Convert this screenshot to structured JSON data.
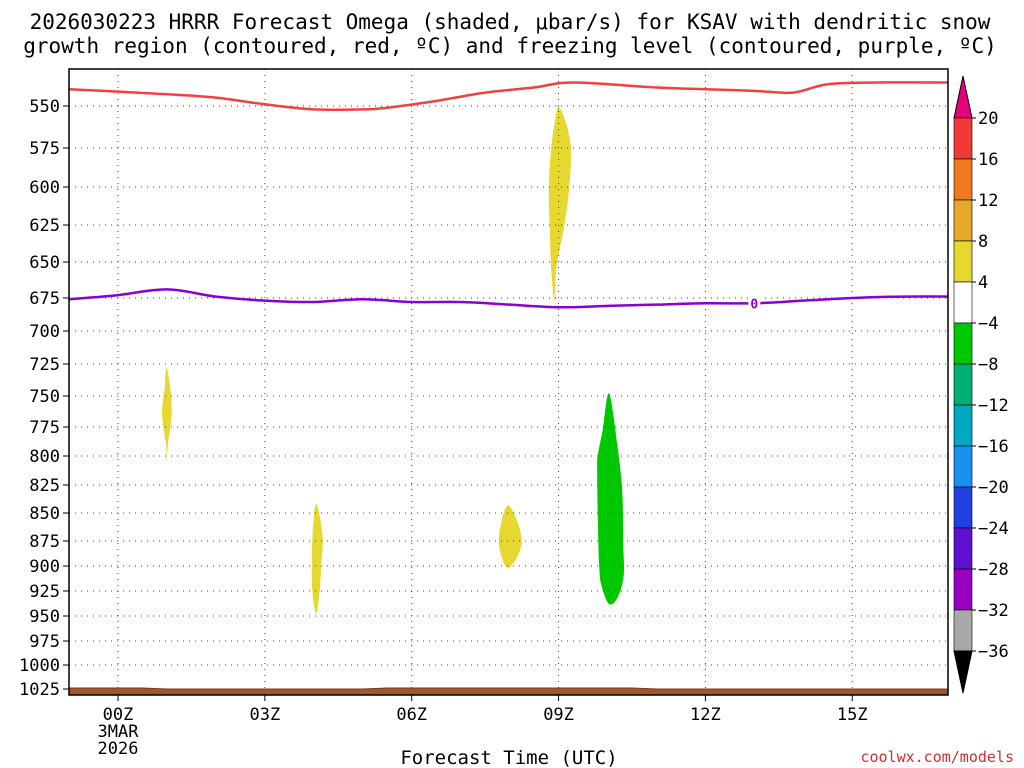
{
  "chart_data": {
    "type": "heatmap",
    "title_line1": "2026030223 HRRR Forecast Omega (shaded, μbar/s) for KSAV with dendritic snow",
    "title_line2": "growth region (contoured, red, ºC) and freezing level (contoured, purple, ºC)",
    "xlabel": "Forecast Time (UTC)",
    "x_hours_range": [
      -1,
      17
    ],
    "x_ticks": [
      {
        "hour": 0,
        "label": "00Z"
      },
      {
        "hour": 3,
        "label": "03Z"
      },
      {
        "hour": 6,
        "label": "06Z"
      },
      {
        "hour": 9,
        "label": "09Z"
      },
      {
        "hour": 12,
        "label": "12Z"
      },
      {
        "hour": 15,
        "label": "15Z"
      }
    ],
    "date_label": [
      "3MAR",
      "2026"
    ],
    "y_ticks": [
      550,
      575,
      600,
      625,
      650,
      675,
      700,
      725,
      750,
      775,
      800,
      825,
      850,
      875,
      900,
      925,
      950,
      975,
      1000,
      1025
    ],
    "colorbar": {
      "labels": [
        "20",
        "16",
        "12",
        "8",
        "4",
        "−4",
        "−8",
        "−12",
        "−16",
        "−20",
        "−24",
        "−28",
        "−32",
        "−36"
      ],
      "colors": [
        "#f03a3a",
        "#f07a20",
        "#e6a82a",
        "#e6d830",
        "#ffffff",
        "#00c800",
        "#00b070",
        "#00a8c0",
        "#1890f0",
        "#2040e0",
        "#6010d0",
        "#9a00c0",
        "#a8a8a8"
      ],
      "top_arrow_color": "#e6007a",
      "bottom_arrow_color": "#000000"
    },
    "omega_regions": [
      {
        "name": "ascent-0900",
        "value": "4 to 8",
        "color": "#e6d830",
        "points": [
          [
            9.0,
            550
          ],
          [
            9.15,
            560
          ],
          [
            9.25,
            575
          ],
          [
            9.22,
            600
          ],
          [
            9.12,
            625
          ],
          [
            8.95,
            655
          ],
          [
            8.92,
            677
          ],
          [
            8.85,
            655
          ],
          [
            8.82,
            625
          ],
          [
            8.8,
            600
          ],
          [
            8.85,
            575
          ],
          [
            8.95,
            555
          ]
        ]
      },
      {
        "name": "ascent-0100",
        "value": "4 to 8",
        "color": "#e6d830",
        "points": [
          [
            1.0,
            728
          ],
          [
            1.1,
            760
          ],
          [
            1.02,
            790
          ],
          [
            1.0,
            805
          ],
          [
            0.98,
            790
          ],
          [
            0.9,
            765
          ],
          [
            0.95,
            745
          ]
        ]
      },
      {
        "name": "ascent-0400",
        "value": "4 to 8",
        "color": "#e6d830",
        "points": [
          [
            4.05,
            842
          ],
          [
            4.18,
            870
          ],
          [
            4.15,
            900
          ],
          [
            4.12,
            925
          ],
          [
            4.05,
            948
          ],
          [
            3.97,
            925
          ],
          [
            3.96,
            900
          ],
          [
            3.98,
            865
          ]
        ]
      },
      {
        "name": "ascent-0800",
        "value": "4 to 8",
        "color": "#e6d830",
        "points": [
          [
            7.97,
            843
          ],
          [
            8.25,
            875
          ],
          [
            7.97,
            902
          ],
          [
            7.78,
            875
          ]
        ]
      },
      {
        "name": "descent-1000",
        "value": "-4 to -8",
        "color": "#00c800",
        "points": [
          [
            10.03,
            748
          ],
          [
            10.2,
            790
          ],
          [
            10.3,
            830
          ],
          [
            10.32,
            875
          ],
          [
            10.33,
            910
          ],
          [
            10.2,
            932
          ],
          [
            10.03,
            938
          ],
          [
            9.88,
            920
          ],
          [
            9.83,
            900
          ],
          [
            9.8,
            850
          ],
          [
            9.79,
            815
          ],
          [
            9.8,
            800
          ],
          [
            9.9,
            778
          ]
        ]
      }
    ],
    "dgz_contour": {
      "color": "#f04040",
      "points": [
        [
          -1,
          540
        ],
        [
          1,
          543
        ],
        [
          2,
          545
        ],
        [
          3,
          549
        ],
        [
          4,
          552
        ],
        [
          5,
          552
        ],
        [
          5.5,
          551
        ],
        [
          6.5,
          547
        ],
        [
          7.5,
          542
        ],
        [
          8.5,
          539
        ],
        [
          9.3,
          536
        ],
        [
          11.0,
          539
        ],
        [
          12.0,
          540
        ],
        [
          13.0,
          541
        ],
        [
          13.8,
          542
        ],
        [
          14.5,
          537
        ],
        [
          15.5,
          536
        ],
        [
          17,
          536
        ]
      ]
    },
    "freezing_level": {
      "color": "#8a00d0",
      "label": "0",
      "label_hour": 13.0,
      "points": [
        [
          -1,
          676
        ],
        [
          0,
          673
        ],
        [
          1,
          669
        ],
        [
          2,
          674
        ],
        [
          3,
          677
        ],
        [
          4,
          678
        ],
        [
          5,
          676
        ],
        [
          6,
          678
        ],
        [
          7,
          678
        ],
        [
          8,
          680
        ],
        [
          9,
          682
        ],
        [
          10,
          681
        ],
        [
          11,
          680
        ],
        [
          12,
          679
        ],
        [
          13,
          679
        ],
        [
          14,
          677
        ],
        [
          15,
          675
        ],
        [
          16,
          674
        ],
        [
          17,
          674
        ]
      ]
    },
    "terrain_top_hpa": [
      [
        -1,
        1024
      ],
      [
        0.5,
        1024
      ],
      [
        1,
        1025
      ],
      [
        5,
        1025
      ],
      [
        5.5,
        1024
      ],
      [
        10.5,
        1024
      ],
      [
        11,
        1025
      ],
      [
        17,
        1025
      ]
    ],
    "terrain_color": "#a0582a",
    "credit": "coolwx.com/models"
  }
}
